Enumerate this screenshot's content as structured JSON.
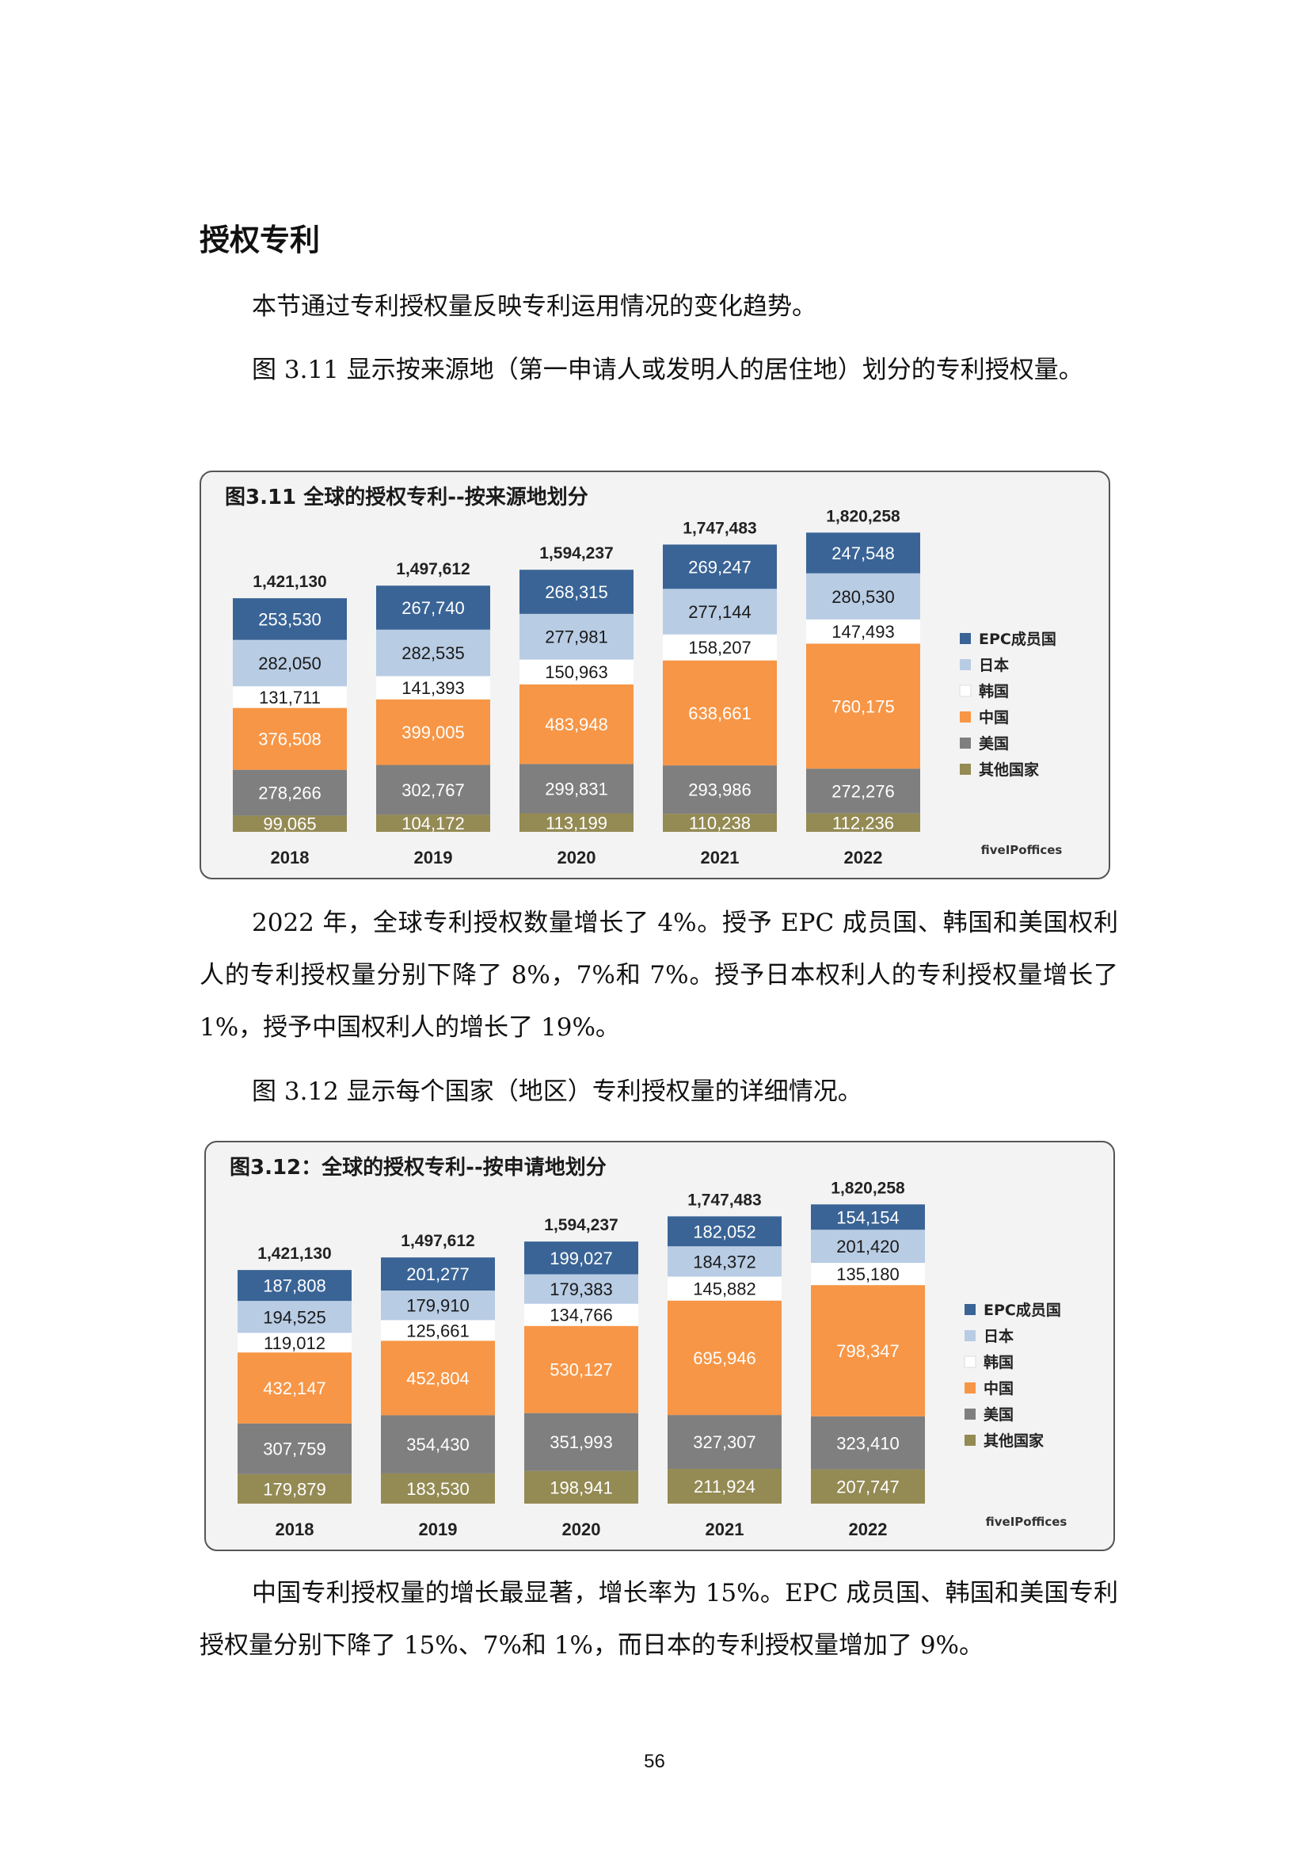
{
  "section_title": "授权专利",
  "paragraphs": [
    "本节通过专利授权量反映专利运用情况的变化趋势。",
    "图 3.11 显示按来源地（第一申请人或发明人的居住地）划分的专利授权量。",
    "2022 年，全球专利授权数量增长了 4%。授予 EPC 成员国、韩国和美国权利人的专利授权量分别下降了 8%，7%和 7%。授予日本权利人的专利授权量增长了 1%，授予中国权利人的增长了 19%。",
    "图 3.12 显示每个国家（地区）专利授权量的详细情况。",
    "中国专利授权量的增长最显著，增长率为 15%。EPC 成员国、韩国和美国专利授权量分别下降了 15%、7%和 1%，而日本的专利授权量增加了 9%。"
  ],
  "page_number": "56",
  "logo_text": "fiveIPoffices",
  "colors": {
    "EPC成员国": "#3a6496",
    "日本": "#b8cce4",
    "韩国": "#ffffff",
    "中国": "#f79646",
    "美国": "#7f7f7f",
    "其他国家": "#948a54"
  },
  "chart_data": [
    {
      "type": "bar",
      "stacked": true,
      "title": "图3.11 全球的授权专利--按来源地划分",
      "categories": [
        "2018",
        "2019",
        "2020",
        "2021",
        "2022"
      ],
      "totals": [
        "1,421,130",
        "1,497,612",
        "1,594,237",
        "1,747,483",
        "1,820,258"
      ],
      "legend_position": "right",
      "series": [
        {
          "name": "其他国家",
          "values": [
            99065,
            104172,
            113199,
            110238,
            112236
          ],
          "labels": [
            "99,065",
            "104,172",
            "113,199",
            "110,238",
            "112,236"
          ]
        },
        {
          "name": "美国",
          "values": [
            278266,
            302767,
            299831,
            293986,
            272276
          ],
          "labels": [
            "278,266",
            "302,767",
            "299,831",
            "293,986",
            "272,276"
          ]
        },
        {
          "name": "中国",
          "values": [
            376508,
            399005,
            483948,
            638661,
            760175
          ],
          "labels": [
            "376,508",
            "399,005",
            "483,948",
            "638,661",
            "760,175"
          ]
        },
        {
          "name": "韩国",
          "values": [
            131711,
            141393,
            150963,
            158207,
            147493
          ],
          "labels": [
            "131,711",
            "141,393",
            "150,963",
            "158,207",
            "147,493"
          ]
        },
        {
          "name": "日本",
          "values": [
            282050,
            282535,
            277981,
            277144,
            280530
          ],
          "labels": [
            "282,050",
            "282,535",
            "277,981",
            "277,144",
            "280,530"
          ]
        },
        {
          "name": "EPC成员国",
          "values": [
            253530,
            267740,
            268315,
            269247,
            247548
          ],
          "labels": [
            "253,530",
            "267,740",
            "268,315",
            "269,247",
            "247,548"
          ]
        }
      ]
    },
    {
      "type": "bar",
      "stacked": true,
      "title": "图3.12：全球的授权专利--按申请地划分",
      "categories": [
        "2018",
        "2019",
        "2020",
        "2021",
        "2022"
      ],
      "totals": [
        "1,421,130",
        "1,497,612",
        "1,594,237",
        "1,747,483",
        "1,820,258"
      ],
      "legend_position": "right",
      "series": [
        {
          "name": "其他国家",
          "values": [
            179879,
            183530,
            198941,
            211924,
            207747
          ],
          "labels": [
            "179,879",
            "183,530",
            "198,941",
            "211,924",
            "207,747"
          ]
        },
        {
          "name": "美国",
          "values": [
            307759,
            354430,
            351993,
            327307,
            323410
          ],
          "labels": [
            "307,759",
            "354,430",
            "351,993",
            "327,307",
            "323,410"
          ]
        },
        {
          "name": "中国",
          "values": [
            432147,
            452804,
            530127,
            695946,
            798347
          ],
          "labels": [
            "432,147",
            "452,804",
            "530,127",
            "695,946",
            "798,347"
          ]
        },
        {
          "name": "韩国",
          "values": [
            119012,
            125661,
            134766,
            145882,
            135180
          ],
          "labels": [
            "119,012",
            "125,661",
            "134,766",
            "145,882",
            "135,180"
          ]
        },
        {
          "name": "日本",
          "values": [
            194525,
            179910,
            179383,
            184372,
            201420
          ],
          "labels": [
            "194,525",
            "179,910",
            "179,383",
            "184,372",
            "201,420"
          ]
        },
        {
          "name": "EPC成员国",
          "values": [
            187808,
            201277,
            199027,
            182052,
            154154
          ],
          "labels": [
            "187,808",
            "201,277",
            "199,027",
            "182,052",
            "154,154"
          ]
        }
      ]
    }
  ]
}
